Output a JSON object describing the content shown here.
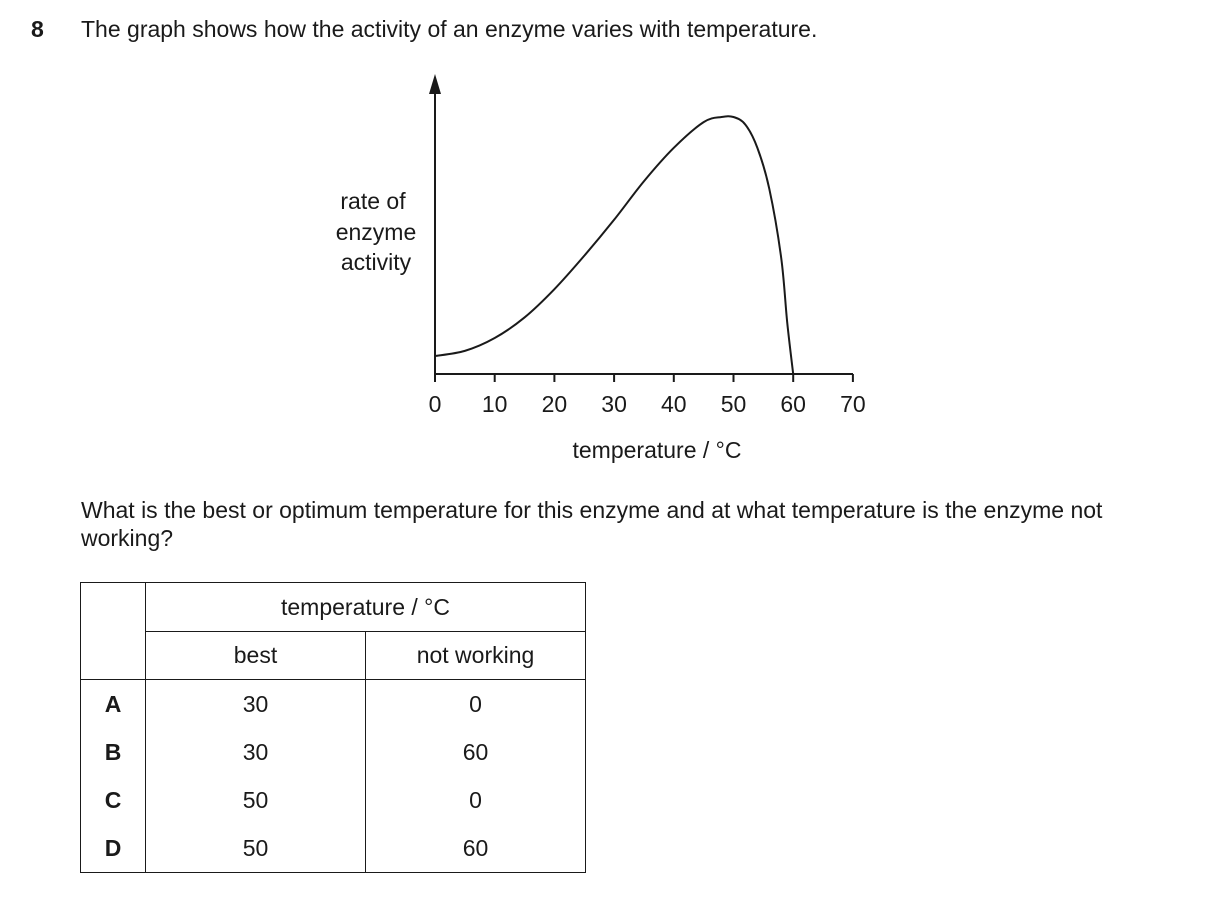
{
  "question": {
    "number": "8",
    "stem": "The graph shows how the activity of an enzyme varies with temperature.",
    "prompt": "What is the best or optimum temperature for this enzyme and at what temperature is the enzyme not working?"
  },
  "graph": {
    "y_label_lines": [
      "rate of",
      "enzyme",
      "activity"
    ],
    "x_label": "temperature / °C",
    "x_ticks": [
      "0",
      "10",
      "20",
      "30",
      "40",
      "50",
      "60",
      "70"
    ]
  },
  "chart_data": {
    "type": "line",
    "xlabel": "temperature / °C",
    "ylabel": "rate of enzyme activity",
    "xlim": [
      0,
      70
    ],
    "x_ticks": [
      0,
      10,
      20,
      30,
      40,
      50,
      60,
      70
    ],
    "series": [
      {
        "x": [
          0,
          5,
          10,
          15,
          20,
          25,
          30,
          35,
          40,
          45,
          48,
          50,
          52,
          54,
          56,
          58,
          59,
          60
        ],
        "y": [
          0.07,
          0.09,
          0.14,
          0.22,
          0.33,
          0.46,
          0.6,
          0.75,
          0.88,
          0.98,
          1.0,
          1.0,
          0.97,
          0.88,
          0.72,
          0.45,
          0.2,
          0
        ]
      }
    ]
  },
  "table": {
    "group_header": "temperature / °C",
    "col_best": "best",
    "col_not_working": "not working",
    "rows": [
      {
        "letter": "A",
        "best": "30",
        "not_working": "0"
      },
      {
        "letter": "B",
        "best": "30",
        "not_working": "60"
      },
      {
        "letter": "C",
        "best": "50",
        "not_working": "0"
      },
      {
        "letter": "D",
        "best": "50",
        "not_working": "60"
      }
    ]
  }
}
